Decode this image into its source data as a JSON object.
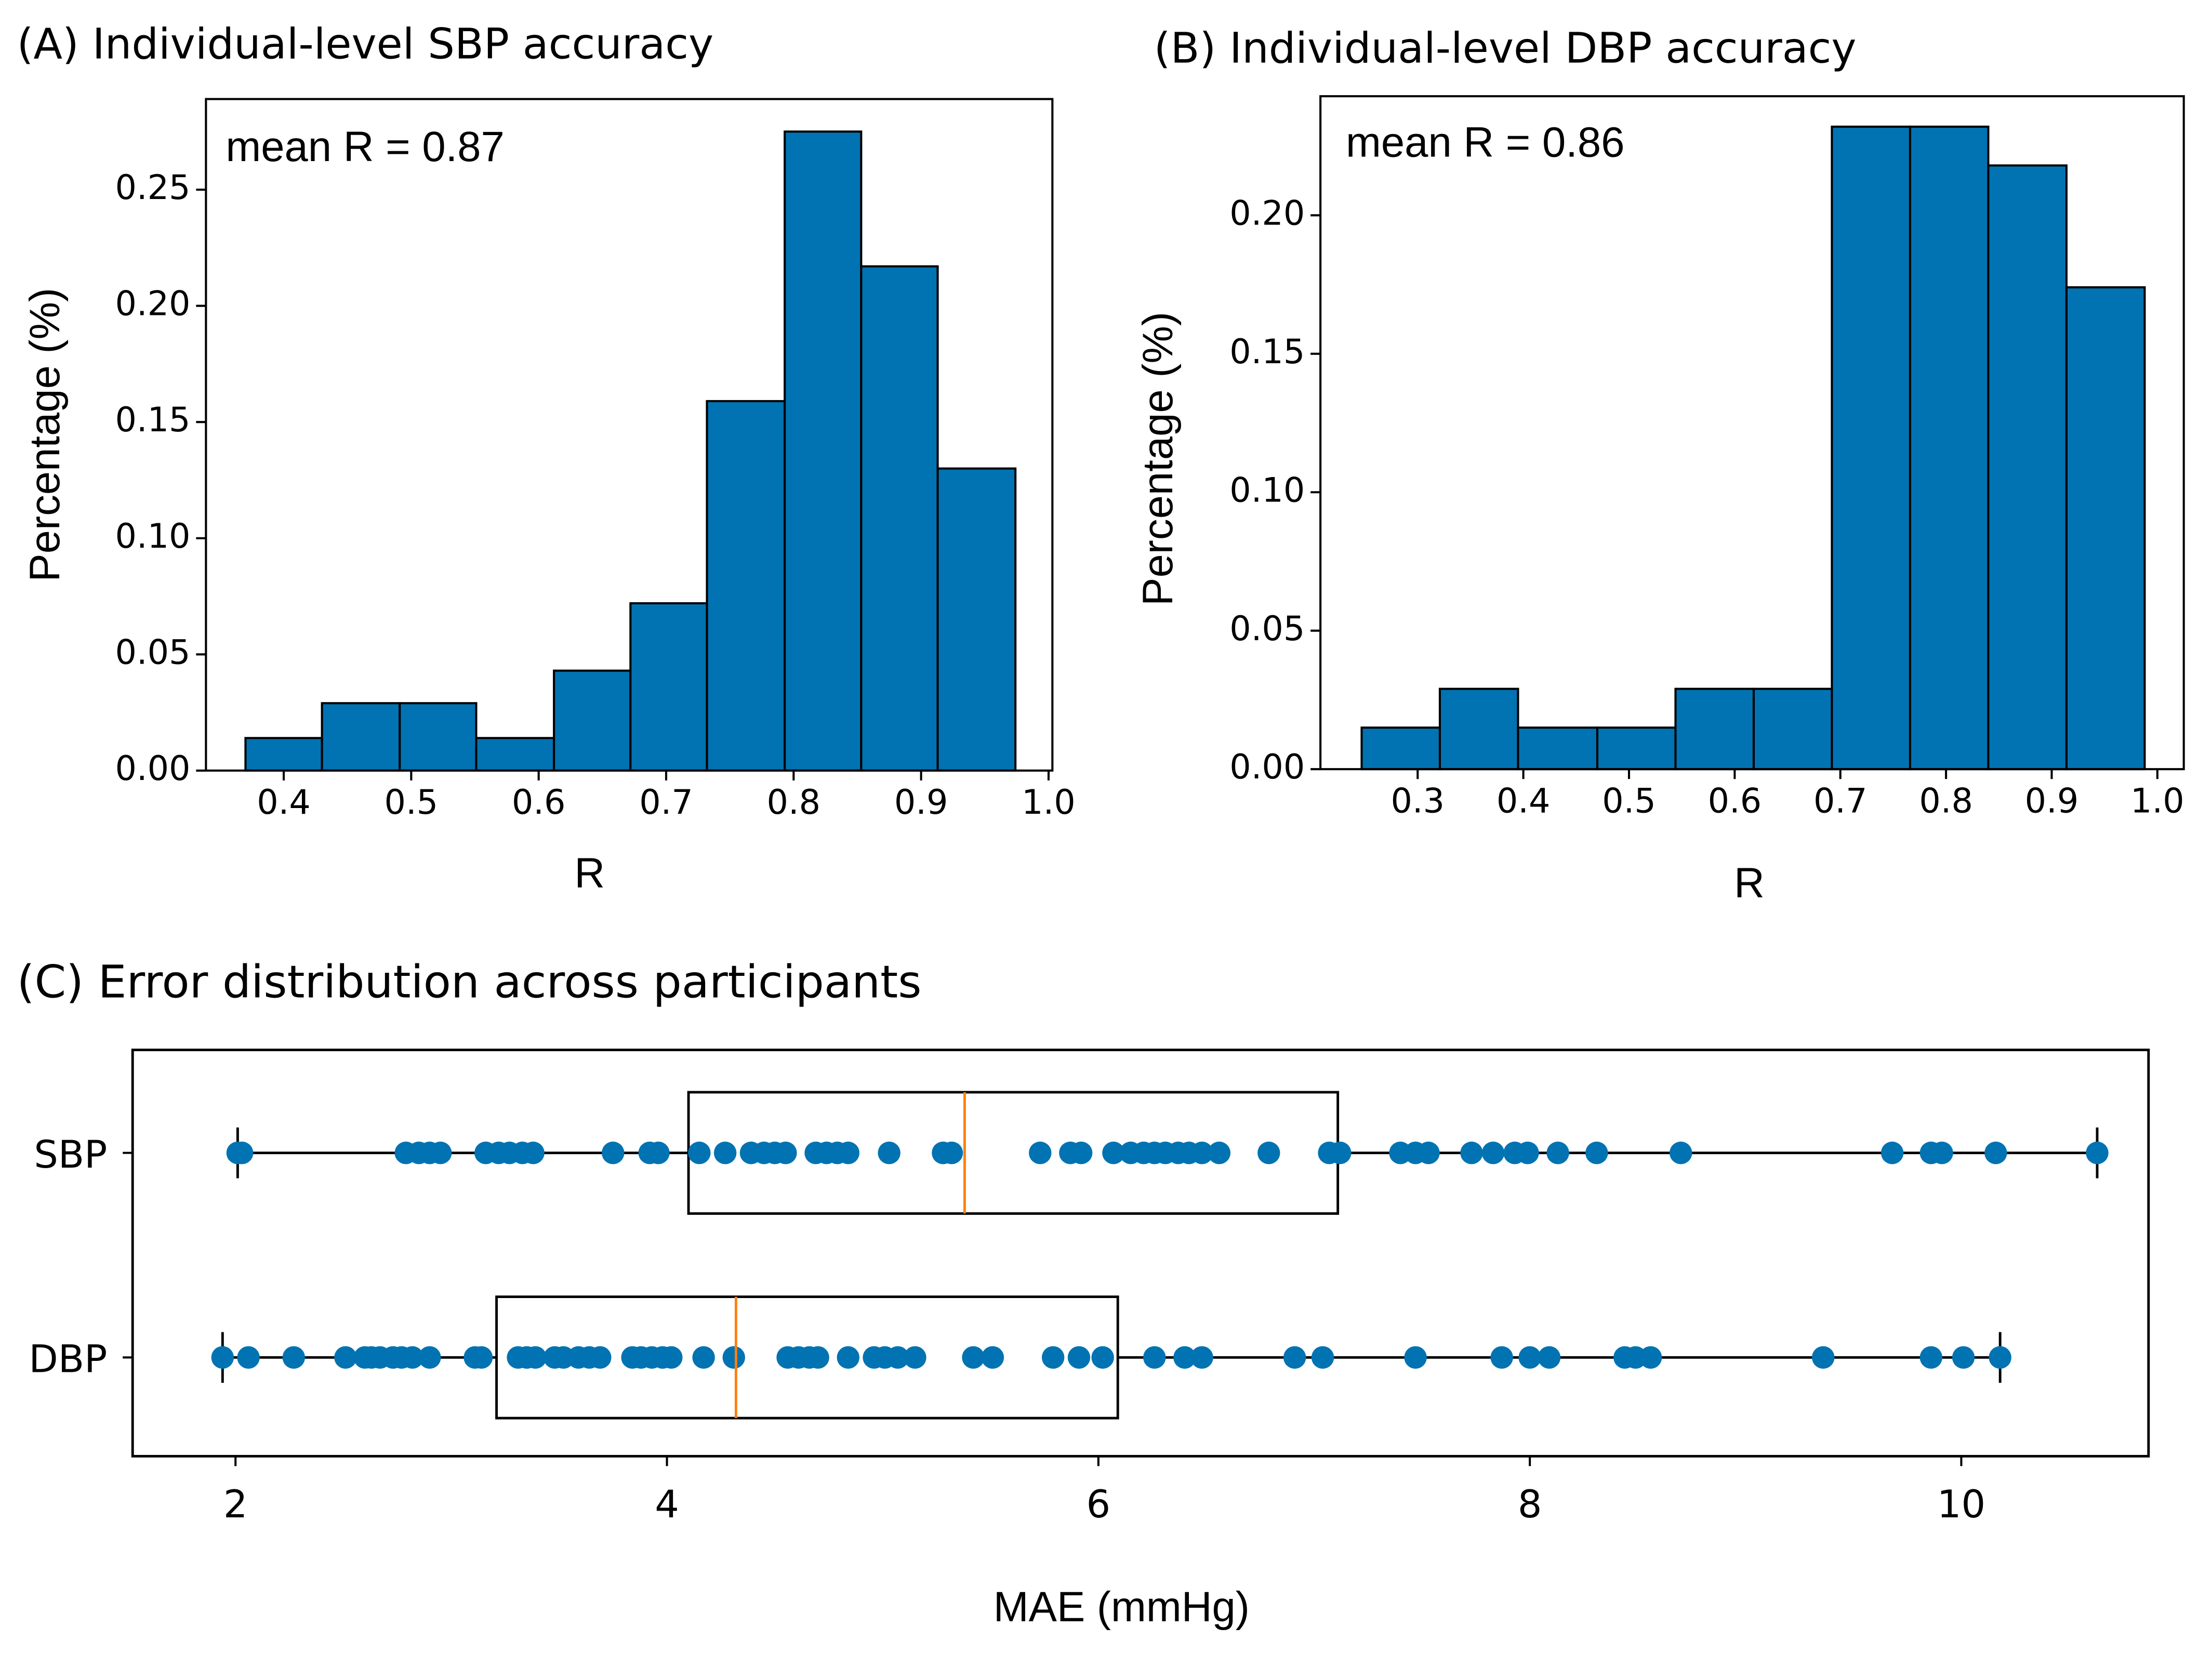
{
  "chart_data": [
    {
      "type": "histogram",
      "title": "(A) Individual-level SBP accuracy",
      "annotation": "mean R = 0.87",
      "xlabel": "R",
      "ylabel": "Percentage (%)",
      "color": "#0173b2",
      "edgecolor": "#000000",
      "bins": [
        0.37,
        0.43,
        0.491,
        0.551,
        0.612,
        0.672,
        0.732,
        0.793,
        0.853,
        0.913,
        0.974
      ],
      "values": [
        0.014,
        0.029,
        0.029,
        0.014,
        0.043,
        0.072,
        0.159,
        0.275,
        0.217,
        0.13
      ],
      "xlim": [
        0.339,
        1.003
      ],
      "ylim": [
        0,
        0.289
      ],
      "xticks": [
        0.4,
        0.5,
        0.6,
        0.7,
        0.8,
        0.9,
        {
          "value": 1.0,
          "label": "1.0"
        }
      ],
      "yticks": [
        {
          "value": 0,
          "label": "0.00"
        },
        0.05,
        {
          "value": 0.1,
          "label": "0.10"
        },
        0.15,
        {
          "value": 0.2,
          "label": "0.20"
        },
        0.25
      ]
    },
    {
      "type": "histogram",
      "title": "(B) Individual-level DBP accuracy",
      "annotation": "mean R = 0.86",
      "xlabel": "R",
      "ylabel": "Percentage (%)",
      "color": "#0173b2",
      "edgecolor": "#000000",
      "bins": [
        0.247,
        0.321,
        0.395,
        0.47,
        0.544,
        0.618,
        0.692,
        0.766,
        0.84,
        0.914,
        0.988
      ],
      "values": [
        0.015,
        0.029,
        0.015,
        0.015,
        0.029,
        0.029,
        0.232,
        0.232,
        0.218,
        0.174
      ],
      "xlim": [
        0.208,
        1.025
      ],
      "ylim": [
        0,
        0.243
      ],
      "xticks": [
        0.3,
        0.4,
        0.5,
        0.6,
        0.7,
        0.8,
        0.9,
        {
          "value": 1.0,
          "label": "1.0"
        }
      ],
      "yticks": [
        {
          "value": 0,
          "label": "0.00"
        },
        0.05,
        {
          "value": 0.1,
          "label": "0.10"
        },
        0.15,
        {
          "value": 0.2,
          "label": "0.20"
        }
      ]
    },
    {
      "type": "boxplot",
      "title": "(C) Error distribution across participants",
      "xlabel": "MAE (mmHg)",
      "categories": [
        "SBP",
        "DBP"
      ],
      "point_color": "#0173b2",
      "median_color": "#ff7f0e",
      "box_color": "#000000",
      "boxes": [
        {
          "whislo": 2.01,
          "q1": 4.1,
          "median": 5.38,
          "q3": 7.11,
          "whishi": 10.63,
          "points": [
            2.01,
            2.03,
            2.79,
            2.85,
            2.9,
            2.95,
            3.16,
            3.22,
            3.27,
            3.33,
            3.38,
            3.75,
            3.92,
            3.96,
            4.15,
            4.27,
            4.39,
            4.45,
            4.5,
            4.55,
            4.69,
            4.74,
            4.79,
            4.84,
            5.03,
            5.28,
            5.32,
            5.73,
            5.87,
            5.92,
            6.07,
            6.15,
            6.21,
            6.26,
            6.31,
            6.37,
            6.42,
            6.48,
            6.56,
            6.79,
            7.07,
            7.12,
            7.4,
            7.47,
            7.53,
            7.73,
            7.83,
            7.93,
            7.99,
            8.13,
            8.31,
            8.7,
            9.68,
            9.86,
            9.91,
            10.16,
            10.63
          ]
        },
        {
          "whislo": 1.94,
          "q1": 3.21,
          "median": 4.32,
          "q3": 6.09,
          "whishi": 10.18,
          "points": [
            1.94,
            2.06,
            2.27,
            2.51,
            2.6,
            2.63,
            2.67,
            2.73,
            2.77,
            2.82,
            2.9,
            3.11,
            3.14,
            3.31,
            3.35,
            3.39,
            3.48,
            3.52,
            3.59,
            3.64,
            3.69,
            3.84,
            3.88,
            3.93,
            3.98,
            4.02,
            4.17,
            4.31,
            4.56,
            4.61,
            4.66,
            4.7,
            4.84,
            4.96,
            5.01,
            5.07,
            5.15,
            5.42,
            5.51,
            5.79,
            5.91,
            6.02,
            6.26,
            6.4,
            6.48,
            6.91,
            7.04,
            7.47,
            7.87,
            8.0,
            8.09,
            8.44,
            8.49,
            8.56,
            9.36,
            9.86,
            10.01,
            10.18
          ]
        }
      ],
      "xlim": [
        1.523,
        10.868
      ],
      "xticks": [
        2,
        4,
        6,
        8,
        10
      ]
    }
  ]
}
